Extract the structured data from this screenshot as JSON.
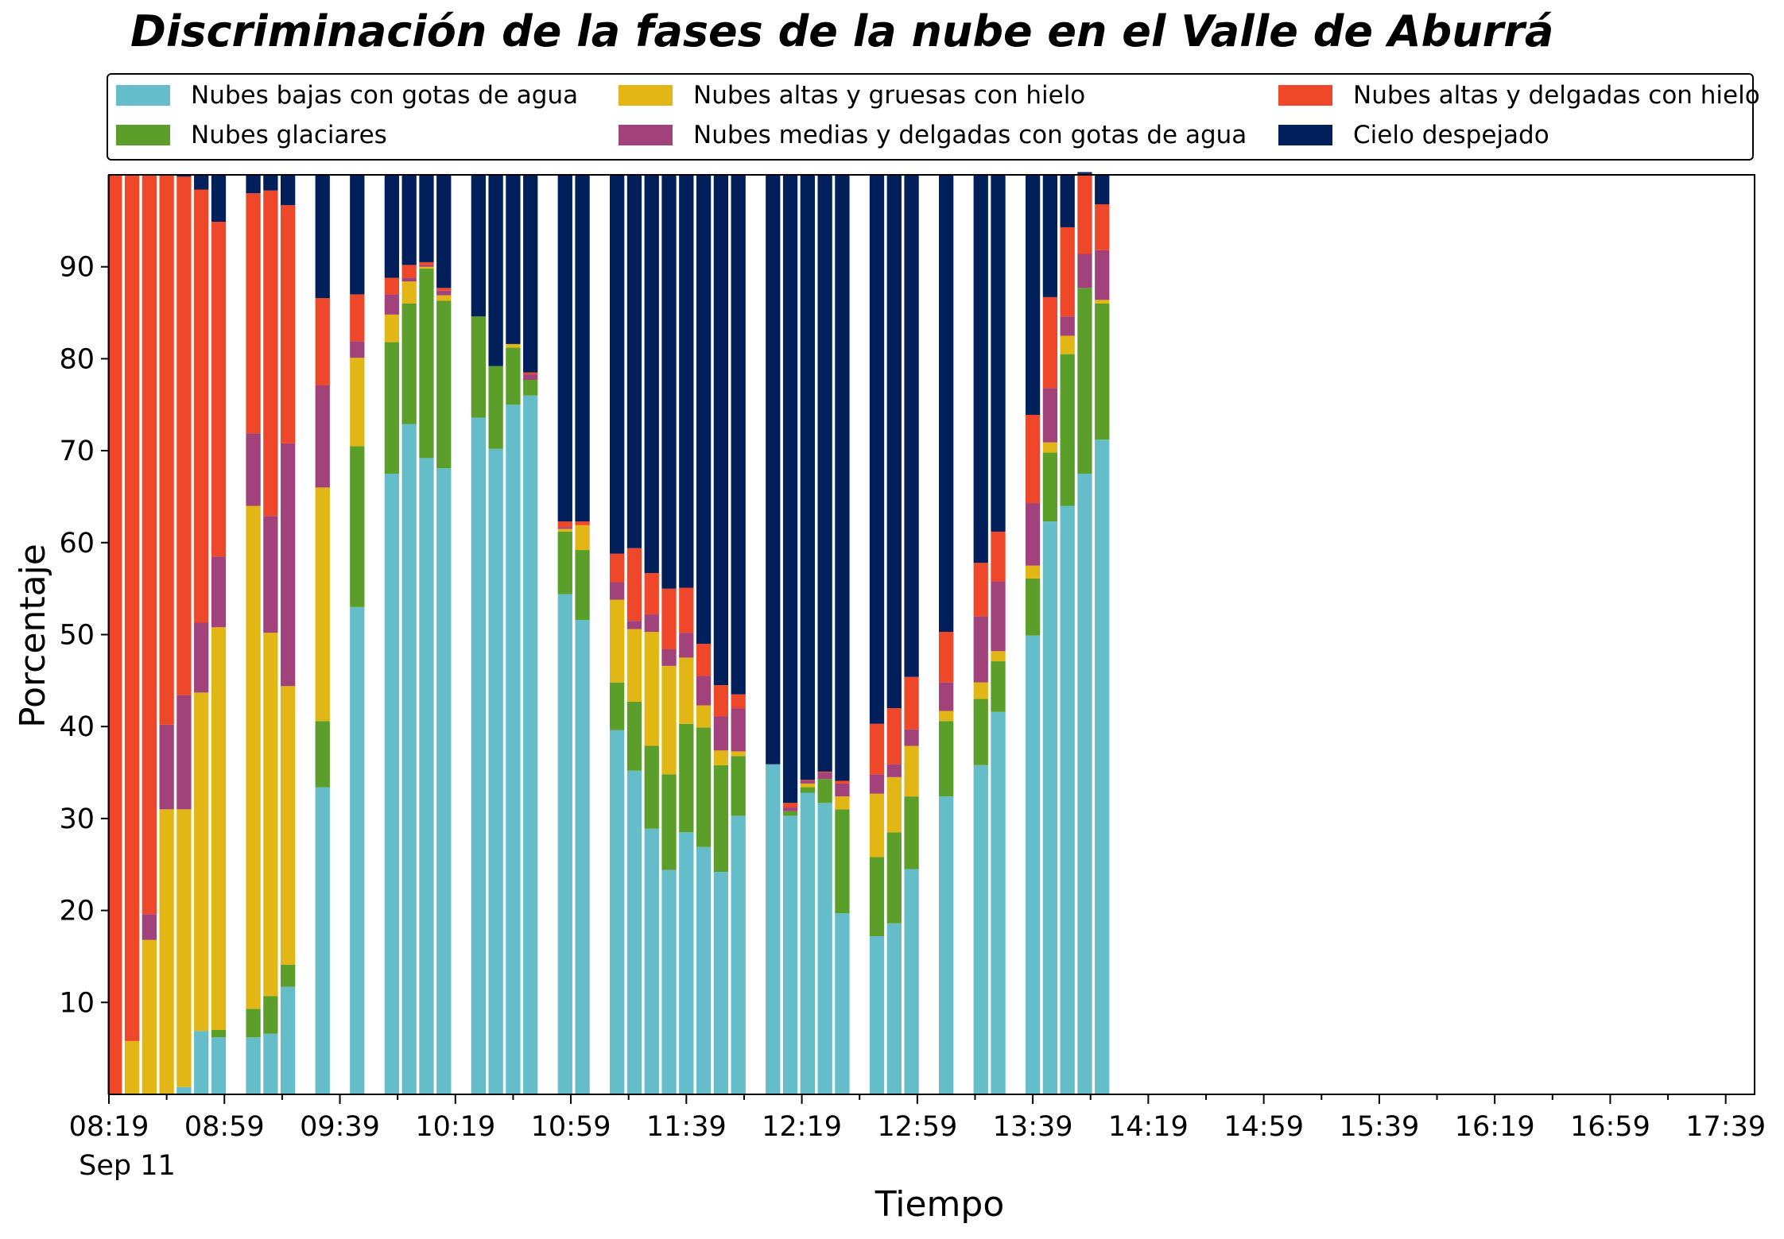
{
  "chart_data": {
    "type": "bar",
    "stacked": true,
    "title": "Discriminación de la fases de la nube en el Valle de Aburrá",
    "xlabel": "Tiempo",
    "ylabel": "Porcentaje",
    "ylim": [
      0,
      100
    ],
    "xlim": [
      "08:19",
      "17:49"
    ],
    "yticks": [
      10,
      20,
      30,
      40,
      50,
      60,
      70,
      80,
      90
    ],
    "xticks": [
      "08:19",
      "08:59",
      "09:39",
      "10:19",
      "10:59",
      "11:39",
      "12:19",
      "12:59",
      "13:39",
      "14:19",
      "14:59",
      "15:39",
      "16:19",
      "16:59",
      "17:39"
    ],
    "date_label": "Sep 11",
    "grid": false,
    "legend_position": "top",
    "colors": {
      "baja": "#64bdc9",
      "glaciar": "#5b9e2a",
      "alta_gruesa": "#e2b615",
      "media_delgada": "#a2427a",
      "alta_delgada": "#ee472a",
      "despejado": "#001f5b"
    },
    "legend": [
      {
        "key": "baja",
        "label": "Nubes bajas con gotas de agua"
      },
      {
        "key": "glaciar",
        "label": "Nubes glaciares"
      },
      {
        "key": "alta_gruesa",
        "label": "Nubes altas y gruesas con hielo"
      },
      {
        "key": "media_delgada",
        "label": "Nubes medias y delgadas con gotas de agua"
      },
      {
        "key": "alta_delgada",
        "label": "Nubes altas y delgadas con hielo"
      },
      {
        "key": "despejado",
        "label": "Cielo despejado"
      }
    ],
    "series_order": [
      "baja",
      "glaciar",
      "alta_gruesa",
      "media_delgada",
      "alta_delgada",
      "despejado"
    ],
    "bars": [
      {
        "time": "08:21",
        "baja": 0,
        "glaciar": 0,
        "alta_gruesa": 0,
        "media_delgada": 0,
        "alta_delgada": 100,
        "despejado": 0
      },
      {
        "time": "08:27",
        "baja": 0,
        "glaciar": 0,
        "alta_gruesa": 5.8,
        "media_delgada": 0,
        "alta_delgada": 94.2,
        "despejado": 0
      },
      {
        "time": "08:33",
        "baja": 0,
        "glaciar": 0,
        "alta_gruesa": 16.8,
        "media_delgada": 2.8,
        "alta_delgada": 80.4,
        "despejado": 0
      },
      {
        "time": "08:39",
        "baja": 0,
        "glaciar": 0,
        "alta_gruesa": 31,
        "media_delgada": 9.2,
        "alta_delgada": 59.8,
        "despejado": 0
      },
      {
        "time": "08:45",
        "baja": 0.8,
        "glaciar": 0,
        "alta_gruesa": 30.2,
        "media_delgada": 12.4,
        "alta_delgada": 56.4,
        "despejado": 0.2
      },
      {
        "time": "08:51",
        "baja": 6.9,
        "glaciar": 0,
        "alta_gruesa": 36.8,
        "media_delgada": 7.6,
        "alta_delgada": 47.1,
        "despejado": 1.6
      },
      {
        "time": "08:57",
        "baja": 6.2,
        "glaciar": 0.8,
        "alta_gruesa": 43.8,
        "media_delgada": 7.7,
        "alta_delgada": 36.4,
        "despejado": 5.1
      },
      {
        "time": "09:09",
        "baja": 6.2,
        "glaciar": 3.1,
        "alta_gruesa": 54.7,
        "media_delgada": 7.9,
        "alta_delgada": 26.1,
        "despejado": 2
      },
      {
        "time": "09:15",
        "baja": 6.6,
        "glaciar": 4.1,
        "alta_gruesa": 39.5,
        "media_delgada": 12.7,
        "alta_delgada": 35.4,
        "despejado": 1.7
      },
      {
        "time": "09:21",
        "baja": 11.7,
        "glaciar": 2.4,
        "alta_gruesa": 30.3,
        "media_delgada": 26.4,
        "alta_delgada": 25.9,
        "despejado": 3.3
      },
      {
        "time": "09:33",
        "baja": 33.4,
        "glaciar": 7.2,
        "alta_gruesa": 25.4,
        "media_delgada": 11.1,
        "alta_delgada": 9.5,
        "despejado": 13.4
      },
      {
        "time": "09:45",
        "baja": 53,
        "glaciar": 17.5,
        "alta_gruesa": 9.6,
        "media_delgada": 1.8,
        "alta_delgada": 5.1,
        "despejado": 13
      },
      {
        "time": "09:57",
        "baja": 67.5,
        "glaciar": 14.3,
        "alta_gruesa": 3,
        "media_delgada": 2.2,
        "alta_delgada": 1.8,
        "despejado": 11.2
      },
      {
        "time": "10:03",
        "baja": 72.9,
        "glaciar": 13.1,
        "alta_gruesa": 2.4,
        "media_delgada": 0.4,
        "alta_delgada": 1.4,
        "despejado": 9.8
      },
      {
        "time": "10:09",
        "baja": 69.2,
        "glaciar": 20.6,
        "alta_gruesa": 0.2,
        "media_delgada": 0.2,
        "alta_delgada": 0.3,
        "despejado": 9.5
      },
      {
        "time": "10:15",
        "baja": 68.1,
        "glaciar": 18.2,
        "alta_gruesa": 0.6,
        "media_delgada": 0.5,
        "alta_delgada": 0.3,
        "despejado": 12.3
      },
      {
        "time": "10:27",
        "baja": 73.6,
        "glaciar": 11,
        "alta_gruesa": 0,
        "media_delgada": 0,
        "alta_delgada": 0,
        "despejado": 15.4
      },
      {
        "time": "10:33",
        "baja": 70.2,
        "glaciar": 9,
        "alta_gruesa": 0,
        "media_delgada": 0,
        "alta_delgada": 0,
        "despejado": 20.8
      },
      {
        "time": "10:39",
        "baja": 75,
        "glaciar": 6.2,
        "alta_gruesa": 0.4,
        "media_delgada": 0,
        "alta_delgada": 0,
        "despejado": 18.4
      },
      {
        "time": "10:45",
        "baja": 76,
        "glaciar": 1.7,
        "alta_gruesa": 0,
        "media_delgada": 0.6,
        "alta_delgada": 0.2,
        "despejado": 21.5
      },
      {
        "time": "10:57",
        "baja": 54.4,
        "glaciar": 6.8,
        "alta_gruesa": 0.3,
        "media_delgada": 0.2,
        "alta_delgada": 0.6,
        "despejado": 37.7
      },
      {
        "time": "11:03",
        "baja": 51.6,
        "glaciar": 7.6,
        "alta_gruesa": 2.7,
        "media_delgada": 0,
        "alta_delgada": 0.4,
        "despejado": 37.7
      },
      {
        "time": "11:15",
        "baja": 39.6,
        "glaciar": 5.2,
        "alta_gruesa": 9,
        "media_delgada": 1.9,
        "alta_delgada": 3.1,
        "despejado": 41.2
      },
      {
        "time": "11:21",
        "baja": 35.2,
        "glaciar": 7.5,
        "alta_gruesa": 7.9,
        "media_delgada": 0.9,
        "alta_delgada": 7.9,
        "despejado": 40.6
      },
      {
        "time": "11:27",
        "baja": 28.9,
        "glaciar": 9,
        "alta_gruesa": 12.4,
        "media_delgada": 1.9,
        "alta_delgada": 4.5,
        "despejado": 43.3
      },
      {
        "time": "11:33",
        "baja": 24.4,
        "glaciar": 10.4,
        "alta_gruesa": 11.8,
        "media_delgada": 1.8,
        "alta_delgada": 6.6,
        "despejado": 45
      },
      {
        "time": "11:39",
        "baja": 28.5,
        "glaciar": 11.8,
        "alta_gruesa": 7.2,
        "media_delgada": 2.7,
        "alta_delgada": 4.9,
        "despejado": 44.9
      },
      {
        "time": "11:45",
        "baja": 26.9,
        "glaciar": 13,
        "alta_gruesa": 2.4,
        "media_delgada": 3.2,
        "alta_delgada": 3.5,
        "despejado": 51
      },
      {
        "time": "11:51",
        "baja": 24.2,
        "glaciar": 11.6,
        "alta_gruesa": 1.6,
        "media_delgada": 3.7,
        "alta_delgada": 3.4,
        "despejado": 55.5
      },
      {
        "time": "11:57",
        "baja": 30.3,
        "glaciar": 6.5,
        "alta_gruesa": 0.5,
        "media_delgada": 4.7,
        "alta_delgada": 1.5,
        "despejado": 56.5
      },
      {
        "time": "12:09",
        "baja": 35.9,
        "glaciar": 0,
        "alta_gruesa": 0,
        "media_delgada": 0,
        "alta_delgada": 0,
        "despejado": 64.1
      },
      {
        "time": "12:15",
        "baja": 30.3,
        "glaciar": 0.5,
        "alta_gruesa": 0,
        "media_delgada": 0.4,
        "alta_delgada": 0.5,
        "despejado": 68.3
      },
      {
        "time": "12:21",
        "baja": 32.8,
        "glaciar": 0.6,
        "alta_gruesa": 0.4,
        "media_delgada": 0.3,
        "alta_delgada": 0.1,
        "despejado": 65.8
      },
      {
        "time": "12:27",
        "baja": 31.7,
        "glaciar": 2.6,
        "alta_gruesa": 0,
        "media_delgada": 0.7,
        "alta_delgada": 0.1,
        "despejado": 64.9
      },
      {
        "time": "12:33",
        "baja": 19.7,
        "glaciar": 11.3,
        "alta_gruesa": 1.4,
        "media_delgada": 1.4,
        "alta_delgada": 0.3,
        "despejado": 65.9
      },
      {
        "time": "12:45",
        "baja": 17.2,
        "glaciar": 8.6,
        "alta_gruesa": 6.9,
        "media_delgada": 2.1,
        "alta_delgada": 5.5,
        "despejado": 59.7
      },
      {
        "time": "12:51",
        "baja": 18.6,
        "glaciar": 9.9,
        "alta_gruesa": 6,
        "media_delgada": 1.4,
        "alta_delgada": 6.1,
        "despejado": 58
      },
      {
        "time": "12:57",
        "baja": 24.5,
        "glaciar": 7.9,
        "alta_gruesa": 5.5,
        "media_delgada": 1.8,
        "alta_delgada": 5.7,
        "despejado": 54.6
      },
      {
        "time": "13:09",
        "baja": 32.4,
        "glaciar": 8.2,
        "alta_gruesa": 1.1,
        "media_delgada": 3.1,
        "alta_delgada": 5.5,
        "despejado": 49.7
      },
      {
        "time": "13:21",
        "baja": 35.8,
        "glaciar": 7.2,
        "alta_gruesa": 1.8,
        "media_delgada": 7.2,
        "alta_delgada": 5.8,
        "despejado": 42.2
      },
      {
        "time": "13:27",
        "baja": 41.6,
        "glaciar": 5.5,
        "alta_gruesa": 1.1,
        "media_delgada": 7.6,
        "alta_delgada": 5.4,
        "despejado": 38.8
      },
      {
        "time": "13:39",
        "baja": 49.9,
        "glaciar": 6.2,
        "alta_gruesa": 1.4,
        "media_delgada": 6.8,
        "alta_delgada": 9.6,
        "despejado": 26.1
      },
      {
        "time": "13:45",
        "baja": 62.3,
        "glaciar": 7.5,
        "alta_gruesa": 1.1,
        "media_delgada": 5.9,
        "alta_delgada": 9.9,
        "despejado": 13.3
      },
      {
        "time": "13:51",
        "baja": 64,
        "glaciar": 16.5,
        "alta_gruesa": 2,
        "media_delgada": 2.1,
        "alta_delgada": 9.7,
        "despejado": 5.7
      },
      {
        "time": "13:57",
        "baja": 67.5,
        "glaciar": 20.2,
        "alta_gruesa": 0,
        "media_delgada": 3.7,
        "alta_delgada": 8.7,
        "despejado": 0.2
      },
      {
        "time": "14:03",
        "baja": 71.2,
        "glaciar": 14.8,
        "alta_gruesa": 0.4,
        "media_delgada": 5.4,
        "alta_delgada": 5,
        "despejado": 3.2
      }
    ]
  }
}
